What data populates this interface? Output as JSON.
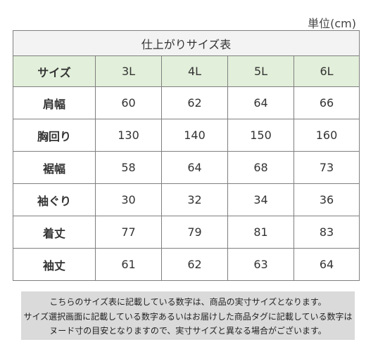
{
  "unit_label": "単位(cm)",
  "table": {
    "title": "仕上がりサイズ表",
    "header": {
      "label": "サイズ",
      "sizes": [
        "3L",
        "4L",
        "5L",
        "6L"
      ]
    },
    "rows": [
      {
        "label": "肩幅",
        "values": [
          "60",
          "62",
          "64",
          "66"
        ]
      },
      {
        "label": "胸回り",
        "values": [
          "130",
          "140",
          "150",
          "160"
        ]
      },
      {
        "label": "裾幅",
        "values": [
          "58",
          "64",
          "68",
          "73"
        ]
      },
      {
        "label": "袖ぐり",
        "values": [
          "30",
          "32",
          "34",
          "36"
        ]
      },
      {
        "label": "着丈",
        "values": [
          "77",
          "79",
          "81",
          "83"
        ]
      },
      {
        "label": "袖丈",
        "values": [
          "61",
          "62",
          "63",
          "64"
        ]
      }
    ]
  },
  "notice": {
    "lines": [
      "こちらのサイズ表に記載している数字は、商品の実寸サイズとなります。",
      "サイズ選択画面に記載している数字あるいはお届けした商品タグに記載している数字は",
      "ヌード寸の目安となりますので、実寸サイズと異なる場合がございます。"
    ]
  }
}
